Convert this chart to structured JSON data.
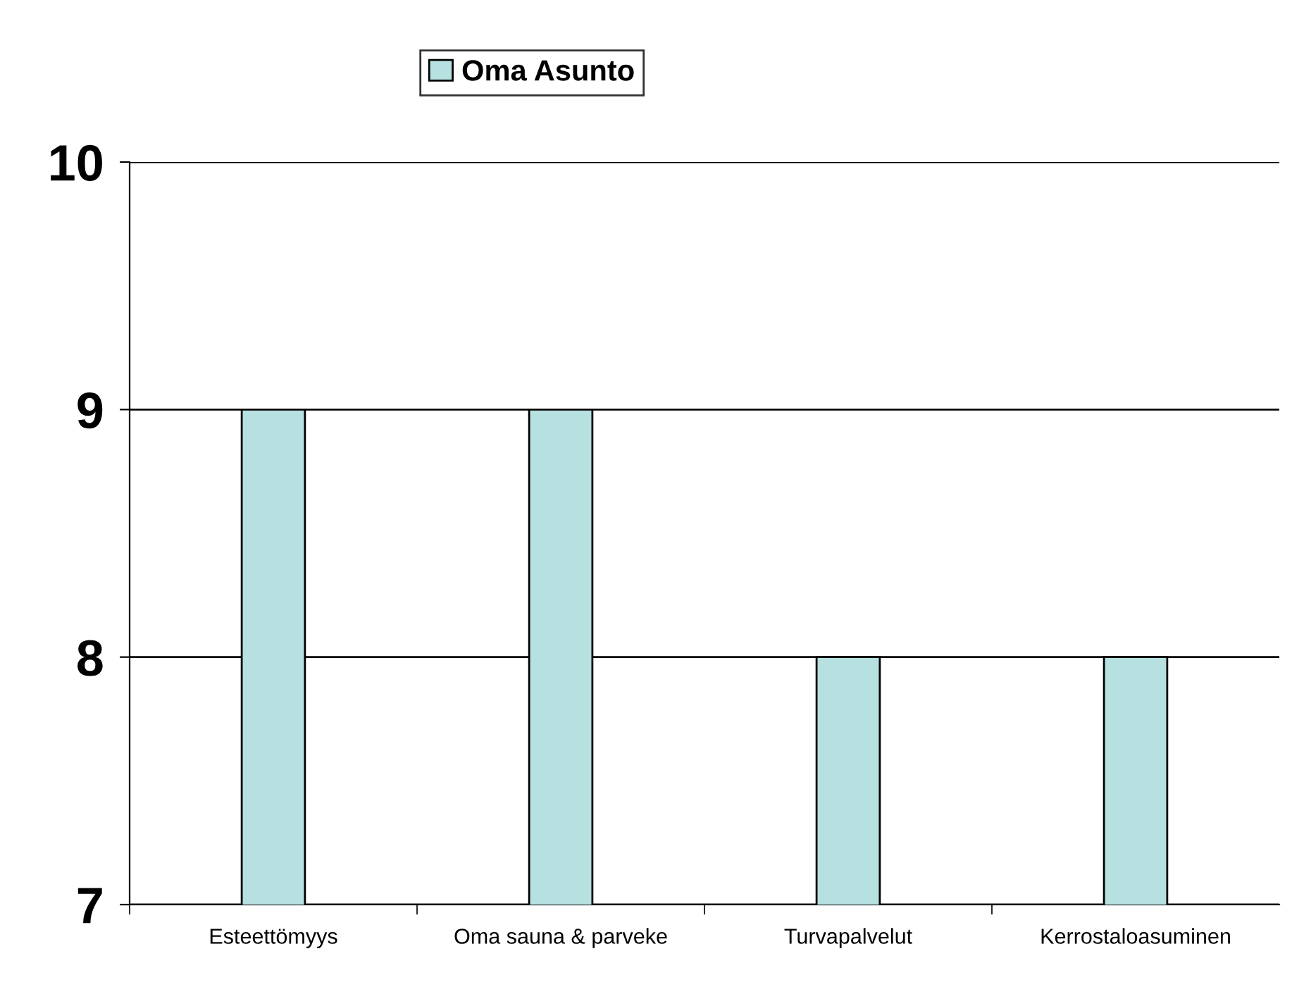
{
  "chart_data": {
    "type": "bar",
    "categories": [
      "Esteettömyys",
      "Oma sauna & parveke",
      "Turvapalvelut",
      "Kerrostaloasuminen"
    ],
    "series": [
      {
        "name": "Oma Asunto",
        "color": "#b7e0e0",
        "values": [
          9,
          9,
          8,
          8
        ]
      }
    ],
    "ylim": [
      7,
      10
    ],
    "yticks": [
      7,
      8,
      9,
      10
    ],
    "grid": "y",
    "legend": "top"
  }
}
